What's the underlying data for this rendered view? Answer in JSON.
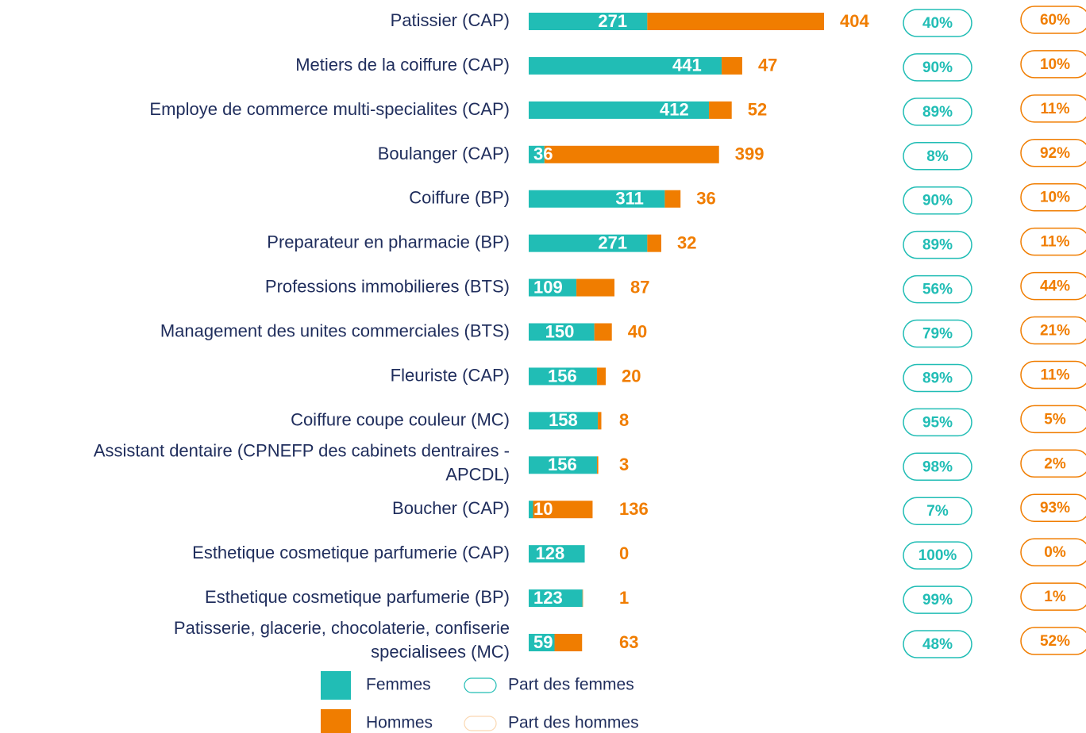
{
  "chart_data": {
    "type": "bar",
    "stacked": true,
    "orientation": "horizontal",
    "categories": [
      "Patissier (CAP)",
      "Metiers de la coiffure (CAP)",
      "Employe de commerce multi-specialites (CAP)",
      "Boulanger (CAP)",
      "Coiffure (BP)",
      "Preparateur en pharmacie (BP)",
      "Professions immobilieres (BTS)",
      "Management des unites commerciales (BTS)",
      "Fleuriste (CAP)",
      "Coiffure coupe couleur (MC)",
      "Assistant dentaire (CPNEFP des cabinets dentraires -\nAPCDL)",
      "Boucher (CAP)",
      "Esthetique cosmetique parfumerie (CAP)",
      "Esthetique cosmetique parfumerie (BP)",
      "Patisserie, glacerie, chocolaterie, confiserie\nspecialisees (MC)"
    ],
    "series": [
      {
        "name": "Femmes",
        "color": "#21bdb5",
        "values": [
          271,
          441,
          412,
          36,
          311,
          271,
          109,
          150,
          156,
          158,
          156,
          10,
          128,
          123,
          59
        ]
      },
      {
        "name": "Hommes",
        "color": "#f07d00",
        "values": [
          404,
          47,
          52,
          399,
          36,
          32,
          87,
          40,
          20,
          8,
          3,
          136,
          0,
          1,
          63
        ]
      }
    ],
    "shares": [
      {
        "name": "Part des femmes",
        "color": "#21bdb5",
        "values": [
          40,
          90,
          89,
          8,
          90,
          89,
          56,
          79,
          89,
          95,
          98,
          7,
          100,
          99,
          48
        ],
        "value_labels": [
          "40%",
          "90%",
          "89%",
          "8%",
          "90%",
          "89%",
          "56%",
          "79%",
          "89%",
          "95%",
          "98%",
          "7%",
          "100%",
          "99%",
          "48%"
        ]
      },
      {
        "name": "Part des hommes",
        "color": "#f07d00",
        "values": [
          60,
          10,
          11,
          92,
          10,
          11,
          44,
          21,
          11,
          5,
          2,
          93,
          0,
          1,
          52
        ],
        "value_labels": [
          "60%",
          "10%",
          "11%",
          "92%",
          "10%",
          "11%",
          "44%",
          "21%",
          "11%",
          "5%",
          "2%",
          "93%",
          "0%",
          "1%",
          "52%"
        ]
      }
    ]
  }
}
